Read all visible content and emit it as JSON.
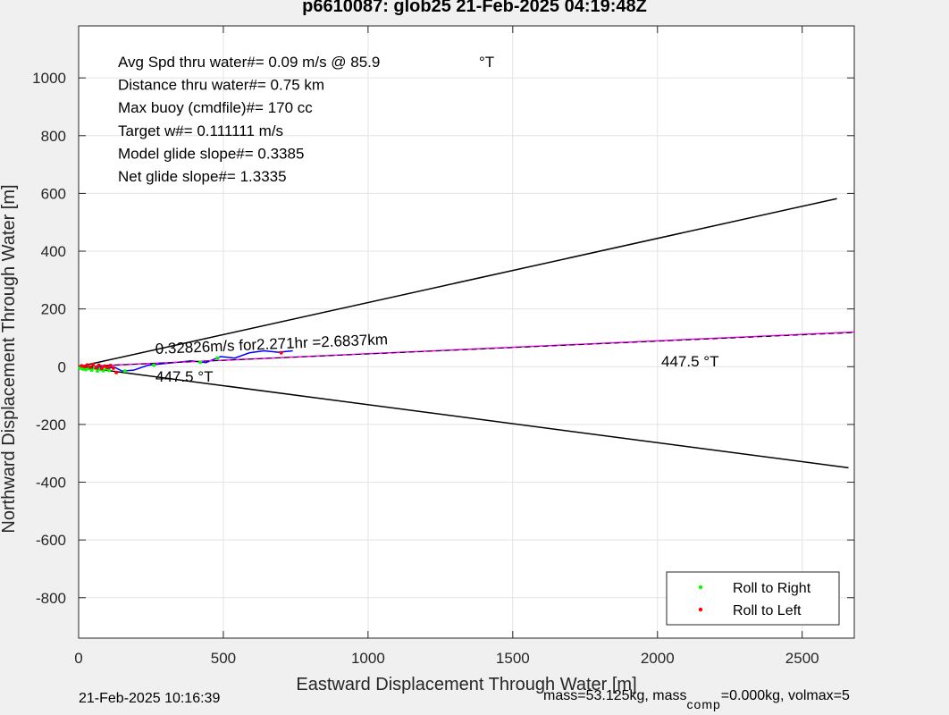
{
  "title": "p6610087: glob25 21-Feb-2025 04:19:48Z",
  "footer": {
    "timestamp": "21-Feb-2025 10:16:39",
    "mass_text": "mass=53.125kg, mass",
    "comp_subscript": "comp",
    "comp_text": "=0.000kg, volmax=5"
  },
  "info_lines": [
    "Avg Spd thru water#=  0.09 m/s @  85.9",
    "Distance thru water#=  0.75 km",
    "Max buoy (cmdfile)#= 170 cc",
    "Target w#= 0.111111 m/s",
    "Model glide slope#= 0.3385",
    "Net glide slope#= 1.3335"
  ],
  "info_degree_unit": "°T",
  "annotations": {
    "speed_label": "0.32826m/s for2.271hr =2.6837km",
    "heading_label_1": "447.5  °T",
    "heading_label_2": "447.5  °T"
  },
  "colors": {
    "roll_right": "#00ff00",
    "roll_left": "#ff0000",
    "track": "#0000ff",
    "net_line": "#ff00ff",
    "cone": "#000000"
  },
  "chart_data": {
    "type": "scatter",
    "xlabel": "Eastward Displacement Through Water [m]",
    "ylabel": "Northward Displacement Through Water [m]",
    "xlim": [
      0,
      2680
    ],
    "ylim": [
      -940,
      1180
    ],
    "xticks": [
      0,
      500,
      1000,
      1500,
      2000,
      2500
    ],
    "yticks": [
      -800,
      -600,
      -400,
      -200,
      0,
      200,
      400,
      600,
      800,
      1000
    ],
    "grid": true,
    "legend": {
      "position": "bottom-right",
      "entries": [
        {
          "label": "Roll to Right",
          "color": "#00ff00"
        },
        {
          "label": "Roll to Left",
          "color": "#ff0000"
        }
      ]
    },
    "series": [
      {
        "kind": "track",
        "color": "#0000ff",
        "x": [
          0,
          20,
          40,
          60,
          80,
          100,
          120,
          150,
          190,
          240,
          290,
          340,
          390,
          440,
          490,
          540,
          590,
          640,
          690,
          740
        ],
        "y": [
          0,
          -3,
          2,
          -6,
          3,
          -8,
          0,
          -15,
          -12,
          5,
          10,
          15,
          20,
          14,
          35,
          30,
          48,
          55,
          50,
          55
        ]
      },
      {
        "kind": "net",
        "color": "#ff00ff",
        "x": [
          0,
          2680
        ],
        "y": [
          0,
          120
        ]
      },
      {
        "kind": "cone-upper",
        "color": "#000000",
        "x": [
          0,
          2620
        ],
        "y": [
          0,
          582
        ]
      },
      {
        "kind": "cone-lower",
        "color": "#000000",
        "x": [
          0,
          2660
        ],
        "y": [
          0,
          -350
        ]
      },
      {
        "kind": "cone-center",
        "color": "#000000",
        "x": [
          0,
          2680
        ],
        "y": [
          0,
          118
        ]
      },
      {
        "name": "Roll to Right",
        "kind": "points",
        "color": "#00ff00",
        "x": [
          5,
          15,
          25,
          35,
          45,
          55,
          65,
          75,
          85,
          95,
          105,
          160,
          260,
          420,
          480
        ],
        "y": [
          -5,
          -8,
          -10,
          -6,
          -12,
          -4,
          -15,
          -9,
          -14,
          -7,
          -13,
          -15,
          5,
          15,
          30
        ]
      },
      {
        "name": "Roll to Left",
        "kind": "points",
        "color": "#ff0000",
        "x": [
          10,
          20,
          30,
          40,
          50,
          60,
          70,
          80,
          90,
          100,
          110,
          120,
          130,
          700
        ],
        "y": [
          3,
          0,
          6,
          -2,
          8,
          -4,
          5,
          -6,
          2,
          -3,
          4,
          -5,
          -20,
          48
        ]
      }
    ]
  }
}
